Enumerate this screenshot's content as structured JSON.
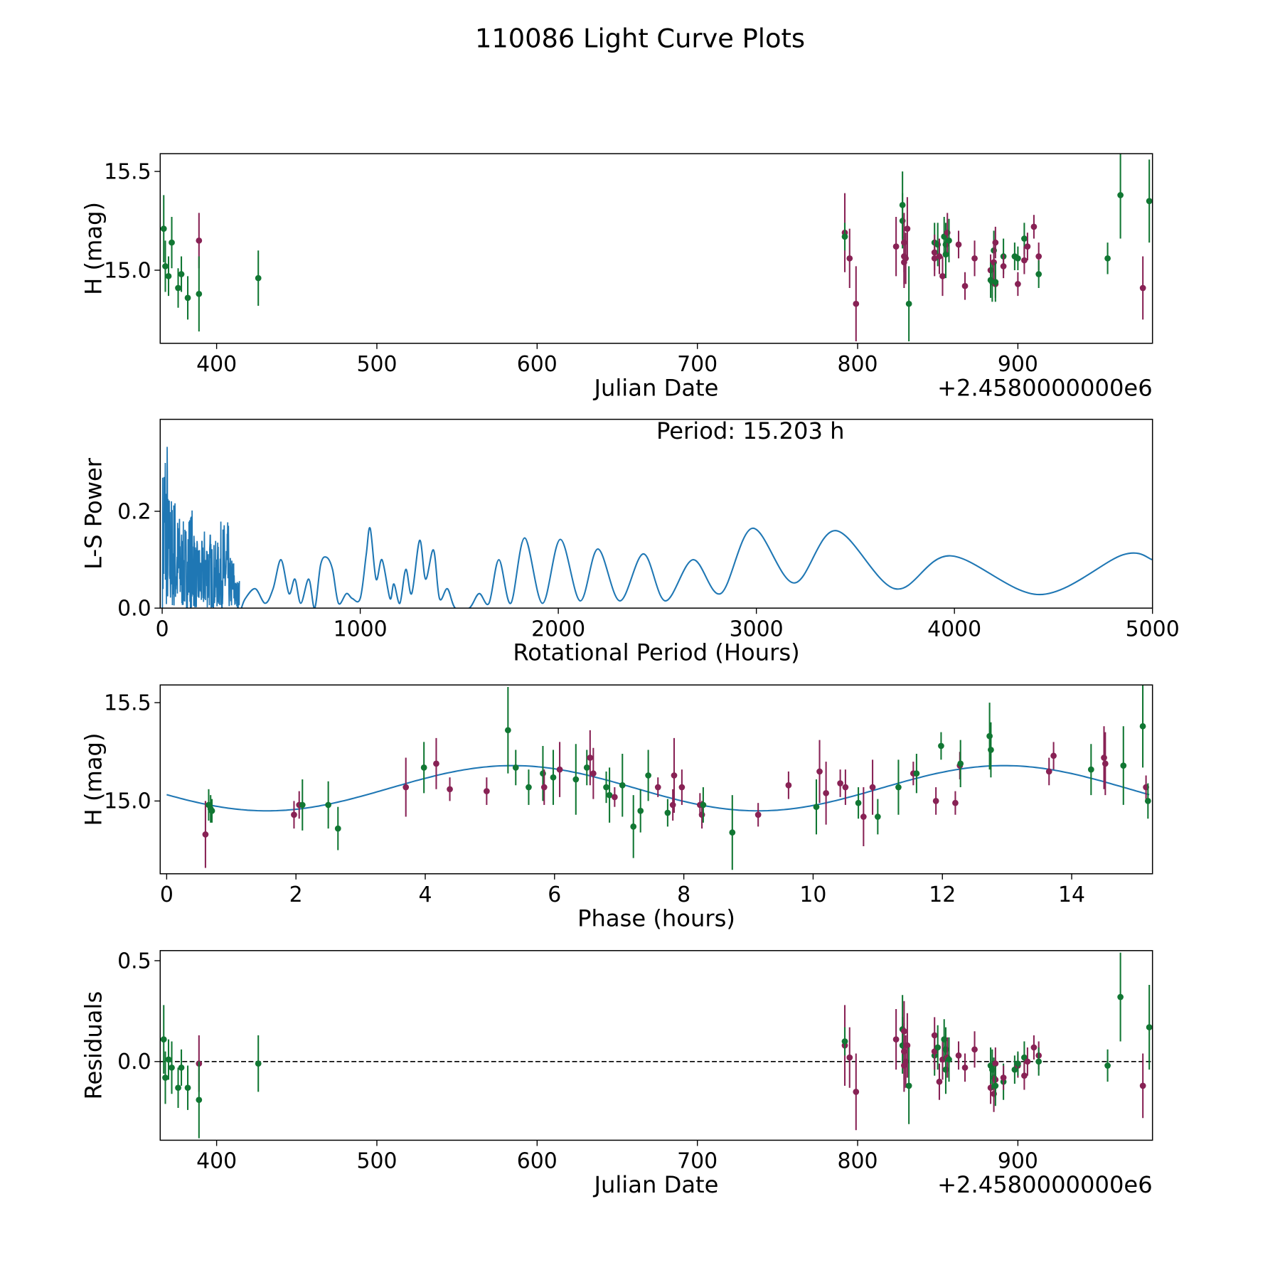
{
  "chart_data": [
    {
      "type": "scatter",
      "panel": "lightcurve",
      "title": "110086 Light Curve Plots",
      "xlabel": "Julian Date",
      "ylabel": "H (mag)",
      "x_offset_label": "+2.4580000000e6",
      "xlim": [
        364.8,
        984
      ],
      "ylim": [
        14.63,
        15.59
      ],
      "xticks": [
        400,
        500,
        600,
        700,
        800,
        900
      ],
      "xtick_labels": [
        "400",
        "500",
        "600",
        "700",
        "800",
        "900"
      ],
      "yticks": [
        15.0,
        15.5
      ],
      "ytick_labels": [
        "15.0",
        "15.5"
      ],
      "colors": {
        "g": "#117733",
        "m": "#882255"
      },
      "point_fields": [
        "jd_minus_offset",
        "H",
        "err",
        "color",
        "residual"
      ],
      "points": [
        [
          367,
          15.21,
          0.17,
          "g",
          0.11
        ],
        [
          368,
          15.02,
          0.13,
          "g",
          -0.08
        ],
        [
          370,
          14.97,
          0.1,
          "g",
          0.01
        ],
        [
          372,
          15.14,
          0.13,
          "g",
          -0.03
        ],
        [
          376,
          14.91,
          0.1,
          "g",
          -0.13
        ],
        [
          378,
          14.98,
          0.09,
          "g",
          -0.03
        ],
        [
          382,
          14.86,
          0.11,
          "g",
          -0.13
        ],
        [
          389,
          15.15,
          0.14,
          "m",
          -0.01
        ],
        [
          389,
          14.88,
          0.19,
          "g",
          -0.19
        ],
        [
          426,
          14.96,
          0.14,
          "g",
          -0.01
        ],
        [
          792,
          15.19,
          0.2,
          "m",
          0.08
        ],
        [
          792,
          15.17,
          0.07,
          "g",
          0.1
        ],
        [
          795,
          15.06,
          0.15,
          "m",
          0.02
        ],
        [
          799,
          14.83,
          0.19,
          "m",
          -0.15
        ],
        [
          824,
          15.12,
          0.15,
          "m",
          0.11
        ],
        [
          828,
          15.33,
          0.17,
          "g",
          0.16
        ],
        [
          828,
          15.25,
          0.14,
          "g",
          0.08
        ],
        [
          829,
          15.14,
          0.15,
          "m",
          0.15
        ],
        [
          829,
          15.07,
          0.14,
          "m",
          0.05
        ],
        [
          829,
          15.04,
          0.13,
          "m",
          -0.02
        ],
        [
          830,
          15.06,
          0.13,
          "m",
          0.0
        ],
        [
          831,
          15.21,
          0.16,
          "m",
          0.08
        ],
        [
          832,
          14.83,
          0.19,
          "g",
          -0.12
        ],
        [
          848,
          15.14,
          0.1,
          "g",
          0.03
        ],
        [
          848,
          15.09,
          0.09,
          "m",
          0.13
        ],
        [
          848,
          15.06,
          0.09,
          "m",
          0.05
        ],
        [
          850,
          15.13,
          0.11,
          "g",
          0.07
        ],
        [
          851,
          15.07,
          0.09,
          "m",
          -0.1
        ],
        [
          853,
          14.97,
          0.1,
          "m",
          0.01
        ],
        [
          854,
          15.17,
          0.1,
          "g",
          0.11
        ],
        [
          855,
          15.13,
          0.11,
          "g",
          0.06
        ],
        [
          855,
          15.08,
          0.12,
          "g",
          -0.04
        ],
        [
          856,
          15.19,
          0.1,
          "m",
          0.02
        ],
        [
          857,
          15.15,
          0.11,
          "g",
          0.01
        ],
        [
          863,
          15.13,
          0.07,
          "m",
          0.03
        ],
        [
          867,
          14.92,
          0.07,
          "m",
          -0.03
        ],
        [
          873,
          15.06,
          0.09,
          "m",
          0.06
        ],
        [
          883,
          15.0,
          0.08,
          "m",
          -0.13
        ],
        [
          883,
          14.95,
          0.09,
          "g",
          -0.02
        ],
        [
          884,
          14.94,
          0.1,
          "g",
          -0.04
        ],
        [
          885,
          15.1,
          0.1,
          "g",
          -0.08
        ],
        [
          885,
          15.04,
          0.09,
          "m",
          -0.16
        ],
        [
          886,
          15.14,
          0.08,
          "m",
          -0.01
        ],
        [
          886,
          14.93,
          0.07,
          "m",
          -0.09
        ],
        [
          886,
          14.94,
          0.1,
          "g",
          -0.12
        ],
        [
          891,
          15.07,
          0.09,
          "g",
          -0.1
        ],
        [
          891,
          15.02,
          0.06,
          "m",
          -0.08
        ],
        [
          898,
          15.07,
          0.07,
          "g",
          -0.04
        ],
        [
          900,
          14.93,
          0.06,
          "m",
          -0.02
        ],
        [
          900,
          15.06,
          0.06,
          "g",
          -0.01
        ],
        [
          904,
          15.16,
          0.08,
          "g",
          0.02
        ],
        [
          904,
          15.05,
          0.07,
          "m",
          -0.07
        ],
        [
          906,
          15.12,
          0.07,
          "m",
          0.0
        ],
        [
          910,
          15.22,
          0.06,
          "m",
          0.07
        ],
        [
          913,
          15.07,
          0.07,
          "m",
          0.03
        ],
        [
          913,
          14.98,
          0.07,
          "g",
          0.0
        ],
        [
          956,
          15.06,
          0.08,
          "g",
          -0.02
        ],
        [
          964,
          15.38,
          0.22,
          "g",
          0.32
        ],
        [
          978,
          14.91,
          0.16,
          "m",
          -0.12
        ],
        [
          982,
          15.35,
          0.21,
          "g",
          0.17
        ]
      ]
    },
    {
      "type": "line",
      "panel": "periodogram",
      "xlabel": "Rotational Period (Hours)",
      "ylabel": "L-S Power",
      "annotation": "Period: 15.203 h",
      "xlim": [
        -10,
        5000
      ],
      "ylim": [
        0,
        0.39
      ],
      "xticks": [
        0,
        1000,
        2000,
        3000,
        4000,
        5000
      ],
      "xtick_labels": [
        "0",
        "1000",
        "2000",
        "3000",
        "4000",
        "5000"
      ],
      "yticks": [
        0.0,
        0.2
      ],
      "ytick_labels": [
        "0.0",
        "0.2"
      ],
      "color": "#1f77b4",
      "noisy_region": {
        "xmax": 390,
        "peaks": [
          [
            5,
            0.3
          ],
          [
            12,
            0.39
          ],
          [
            20,
            0.37
          ],
          [
            35,
            0.25
          ],
          [
            55,
            0.24
          ],
          [
            80,
            0.2
          ],
          [
            110,
            0.18
          ],
          [
            150,
            0.21
          ],
          [
            180,
            0.14
          ],
          [
            230,
            0.17
          ],
          [
            260,
            0.14
          ],
          [
            320,
            0.18
          ],
          [
            350,
            0.11
          ],
          [
            380,
            0.06
          ]
        ]
      },
      "x": [
        400,
        420,
        470,
        520,
        560,
        600,
        640,
        670,
        700,
        740,
        770,
        800,
        830,
        860,
        890,
        930,
        960,
        1000,
        1030,
        1050,
        1080,
        1110,
        1150,
        1170,
        1200,
        1230,
        1260,
        1300,
        1330,
        1370,
        1400,
        1440,
        1480,
        1550,
        1600,
        1650,
        1700,
        1760,
        1830,
        1920,
        2010,
        2110,
        2200,
        2310,
        2430,
        2540,
        2680,
        2820,
        2980,
        3190,
        3400,
        3700,
        3980,
        4430,
        4850,
        5000
      ],
      "y": [
        0.0,
        0.02,
        0.04,
        0.01,
        0.04,
        0.1,
        0.03,
        0.06,
        0.01,
        0.06,
        0.0,
        0.09,
        0.105,
        0.08,
        0.01,
        0.03,
        0.02,
        0.02,
        0.11,
        0.165,
        0.06,
        0.1,
        0.02,
        0.05,
        0.01,
        0.08,
        0.03,
        0.14,
        0.06,
        0.12,
        0.02,
        0.04,
        0.0,
        0.0,
        0.03,
        0.01,
        0.1,
        0.01,
        0.145,
        0.01,
        0.142,
        0.015,
        0.122,
        0.015,
        0.112,
        0.015,
        0.1,
        0.03,
        0.165,
        0.052,
        0.16,
        0.04,
        0.108,
        0.028,
        0.11,
        0.1
      ]
    },
    {
      "type": "scatter",
      "panel": "phased",
      "xlabel": "Phase (hours)",
      "ylabel": "H (mag)",
      "xlim": [
        -0.1,
        15.25
      ],
      "ylim": [
        14.63,
        15.59
      ],
      "xticks": [
        0,
        2,
        4,
        6,
        8,
        10,
        12,
        14
      ],
      "xtick_labels": [
        "0",
        "2",
        "4",
        "6",
        "8",
        "10",
        "12",
        "14"
      ],
      "yticks": [
        15.0,
        15.5
      ],
      "ytick_labels": [
        "15.0",
        "15.5"
      ],
      "fit": {
        "mean": 15.065,
        "amplitude": 0.115,
        "cycle_h": 7.6,
        "phase0_h": 3.45,
        "color": "#1f77b4"
      },
      "point_fields": [
        "phase_h",
        "H",
        "err",
        "color"
      ],
      "points": [
        [
          0.6,
          14.83,
          0.17,
          "m"
        ],
        [
          0.65,
          14.98,
          0.08,
          "g"
        ],
        [
          0.68,
          14.96,
          0.07,
          "g"
        ],
        [
          0.7,
          14.95,
          0.06,
          "g"
        ],
        [
          1.97,
          14.93,
          0.07,
          "m"
        ],
        [
          2.05,
          14.98,
          0.07,
          "m"
        ],
        [
          2.1,
          14.98,
          0.13,
          "g"
        ],
        [
          2.5,
          14.98,
          0.12,
          "g"
        ],
        [
          2.65,
          14.86,
          0.11,
          "g"
        ],
        [
          3.7,
          15.07,
          0.15,
          "m"
        ],
        [
          3.98,
          15.17,
          0.13,
          "g"
        ],
        [
          4.17,
          15.19,
          0.13,
          "m"
        ],
        [
          4.38,
          15.06,
          0.06,
          "m"
        ],
        [
          4.95,
          15.05,
          0.07,
          "m"
        ],
        [
          5.28,
          15.36,
          0.22,
          "g"
        ],
        [
          5.4,
          15.17,
          0.09,
          "g"
        ],
        [
          5.6,
          15.07,
          0.09,
          "g"
        ],
        [
          5.82,
          15.14,
          0.14,
          "g"
        ],
        [
          5.84,
          15.07,
          0.09,
          "m"
        ],
        [
          5.98,
          15.12,
          0.14,
          "g"
        ],
        [
          6.08,
          15.16,
          0.14,
          "m"
        ],
        [
          6.33,
          15.11,
          0.18,
          "g"
        ],
        [
          6.5,
          15.17,
          0.09,
          "g"
        ],
        [
          6.55,
          15.22,
          0.14,
          "m"
        ],
        [
          6.6,
          15.14,
          0.13,
          "m"
        ],
        [
          6.8,
          15.07,
          0.08,
          "g"
        ],
        [
          6.85,
          15.03,
          0.14,
          "g"
        ],
        [
          6.93,
          15.02,
          0.05,
          "m"
        ],
        [
          7.05,
          15.08,
          0.16,
          "g"
        ],
        [
          7.22,
          14.87,
          0.16,
          "g"
        ],
        [
          7.33,
          14.95,
          0.11,
          "g"
        ],
        [
          7.45,
          15.13,
          0.13,
          "g"
        ],
        [
          7.6,
          15.07,
          0.05,
          "m"
        ],
        [
          7.75,
          14.94,
          0.07,
          "g"
        ],
        [
          7.83,
          14.98,
          0.08,
          "m"
        ],
        [
          7.85,
          15.13,
          0.19,
          "m"
        ],
        [
          7.97,
          15.07,
          0.09,
          "m"
        ],
        [
          8.25,
          14.98,
          0.06,
          "m"
        ],
        [
          8.28,
          14.93,
          0.07,
          "m"
        ],
        [
          8.3,
          14.98,
          0.09,
          "g"
        ],
        [
          8.75,
          14.84,
          0.19,
          "g"
        ],
        [
          9.15,
          14.93,
          0.06,
          "m"
        ],
        [
          9.62,
          15.08,
          0.07,
          "m"
        ],
        [
          10.05,
          14.97,
          0.14,
          "g"
        ],
        [
          10.1,
          15.15,
          0.16,
          "m"
        ],
        [
          10.2,
          15.04,
          0.16,
          "m"
        ],
        [
          10.42,
          15.09,
          0.07,
          "m"
        ],
        [
          10.5,
          15.07,
          0.09,
          "m"
        ],
        [
          10.7,
          14.99,
          0.08,
          "g"
        ],
        [
          10.78,
          14.92,
          0.15,
          "m"
        ],
        [
          10.92,
          15.07,
          0.14,
          "m"
        ],
        [
          11.0,
          14.92,
          0.09,
          "g"
        ],
        [
          11.32,
          15.07,
          0.14,
          "g"
        ],
        [
          11.55,
          15.14,
          0.06,
          "m"
        ],
        [
          11.6,
          15.14,
          0.1,
          "g"
        ],
        [
          11.9,
          15.0,
          0.07,
          "m"
        ],
        [
          11.98,
          15.28,
          0.07,
          "g"
        ],
        [
          12.2,
          14.99,
          0.06,
          "m"
        ],
        [
          12.27,
          15.18,
          0.07,
          "m"
        ],
        [
          12.28,
          15.19,
          0.12,
          "g"
        ],
        [
          12.73,
          15.33,
          0.17,
          "g"
        ],
        [
          12.75,
          15.26,
          0.14,
          "g"
        ],
        [
          13.65,
          15.15,
          0.07,
          "m"
        ],
        [
          13.72,
          15.23,
          0.07,
          "m"
        ],
        [
          14.3,
          15.16,
          0.13,
          "g"
        ],
        [
          14.5,
          15.22,
          0.16,
          "m"
        ],
        [
          14.52,
          15.19,
          0.16,
          "m"
        ],
        [
          14.8,
          15.18,
          0.2,
          "g"
        ],
        [
          15.1,
          15.38,
          0.21,
          "g"
        ],
        [
          15.15,
          15.07,
          0.06,
          "m"
        ],
        [
          15.18,
          15.0,
          0.09,
          "g"
        ]
      ]
    },
    {
      "type": "scatter",
      "panel": "residuals",
      "xlabel": "Julian Date",
      "ylabel": "Residuals",
      "x_offset_label": "+2.4580000000e6",
      "xlim": [
        364.8,
        984
      ],
      "ylim": [
        -0.39,
        0.55
      ],
      "xticks": [
        400,
        500,
        600,
        700,
        800,
        900
      ],
      "xtick_labels": [
        "400",
        "500",
        "600",
        "700",
        "800",
        "900"
      ],
      "yticks": [
        0.0,
        0.5
      ],
      "ytick_labels": [
        "0.0",
        "0.5"
      ],
      "zero_line": true,
      "source": "lightcurve points residual field"
    }
  ]
}
